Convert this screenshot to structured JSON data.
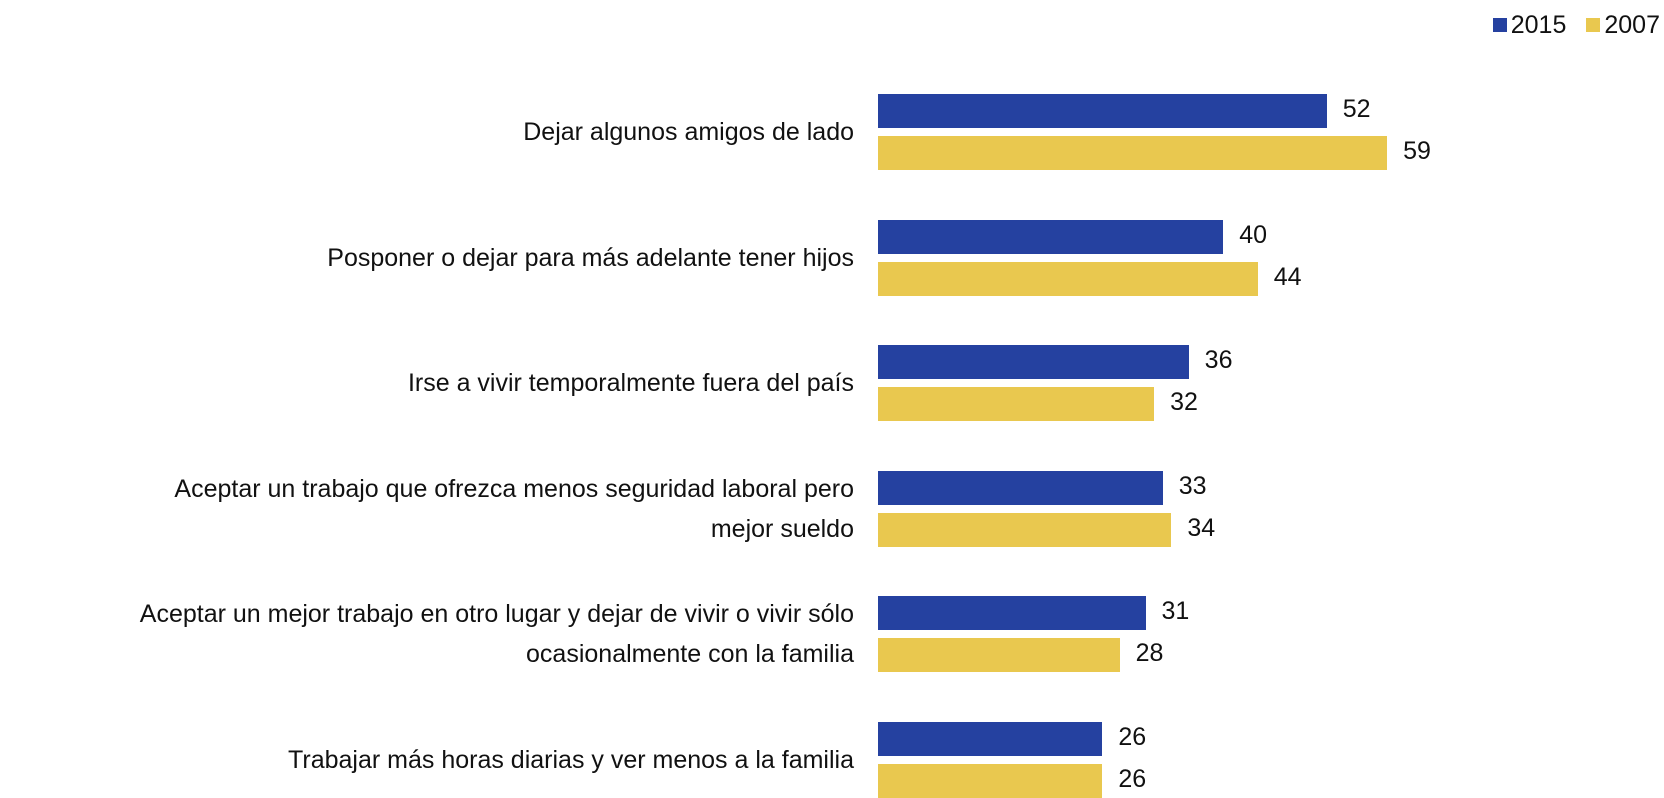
{
  "chart_data": {
    "type": "hbar",
    "categories": [
      "Dejar algunos amigos de lado",
      "Posponer o dejar para más adelante tener hijos",
      "Irse a vivir temporalmente fuera del país",
      "Aceptar un trabajo que ofrezca menos seguridad laboral pero\nmejor sueldo",
      "Aceptar un mejor trabajo en otro lugar y dejar de vivir o vivir sólo\nocasionalmente con la familia",
      "Trabajar más horas diarias y ver menos a la familia"
    ],
    "series": [
      {
        "name": "2015",
        "color": "#2541a0",
        "values": [
          52,
          40,
          36,
          33,
          31,
          26
        ]
      },
      {
        "name": "2007",
        "color": "#e9c84f",
        "values": [
          59,
          44,
          32,
          34,
          28,
          26
        ]
      }
    ],
    "legend": "top-right"
  }
}
